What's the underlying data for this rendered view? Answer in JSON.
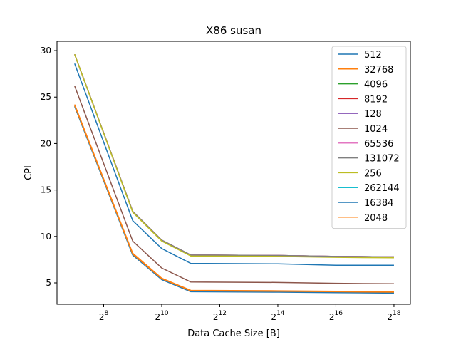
{
  "chart_data": {
    "type": "line",
    "title": "X86 susan",
    "xlabel": "Data Cache Size [B]",
    "ylabel": "CPI",
    "x_scale": "log2",
    "x": [
      128,
      512,
      1024,
      2048,
      16384,
      65536,
      262144
    ],
    "xlim": [
      84,
      388000
    ],
    "ylim": [
      2.7,
      31.0
    ],
    "xticks": [
      {
        "base": "2",
        "exp": "8",
        "value": 256
      },
      {
        "base": "2",
        "exp": "10",
        "value": 1024
      },
      {
        "base": "2",
        "exp": "12",
        "value": 4096
      },
      {
        "base": "2",
        "exp": "14",
        "value": 16384
      },
      {
        "base": "2",
        "exp": "16",
        "value": 65536
      },
      {
        "base": "2",
        "exp": "18",
        "value": 262144
      }
    ],
    "yticks": [
      5,
      10,
      15,
      20,
      25,
      30
    ],
    "grid": false,
    "legend_position": "top-right",
    "series": [
      {
        "name": "512",
        "color": "#1f77b4",
        "values": [
          28.6,
          11.7,
          8.7,
          7.1,
          7.05,
          6.9,
          6.9
        ]
      },
      {
        "name": "32768",
        "color": "#ff7f0e",
        "values": [
          24.2,
          8.2,
          5.5,
          4.2,
          4.15,
          4.1,
          4.05
        ]
      },
      {
        "name": "4096",
        "color": "#2ca02c",
        "values": [
          29.6,
          12.7,
          9.6,
          8.0,
          7.95,
          7.85,
          7.8
        ]
      },
      {
        "name": "8192",
        "color": "#d62728",
        "values": [
          29.6,
          12.7,
          9.6,
          8.0,
          7.95,
          7.85,
          7.8
        ]
      },
      {
        "name": "128",
        "color": "#9467bd",
        "values": [
          29.6,
          12.7,
          9.6,
          8.0,
          7.95,
          7.85,
          7.8
        ]
      },
      {
        "name": "1024",
        "color": "#8c564b",
        "values": [
          26.2,
          9.5,
          6.6,
          5.1,
          5.05,
          4.95,
          4.9
        ]
      },
      {
        "name": "65536",
        "color": "#e377c2",
        "values": [
          29.6,
          12.7,
          9.6,
          8.0,
          7.95,
          7.85,
          7.8
        ]
      },
      {
        "name": "131072",
        "color": "#7f7f7f",
        "values": [
          29.6,
          12.7,
          9.6,
          8.0,
          7.95,
          7.85,
          7.8
        ]
      },
      {
        "name": "256",
        "color": "#bcbd22",
        "values": [
          29.6,
          12.6,
          9.5,
          7.9,
          7.85,
          7.75,
          7.7
        ]
      },
      {
        "name": "262144",
        "color": "#17becf",
        "values": [
          24.0,
          8.0,
          5.4,
          4.1,
          4.05,
          4.0,
          3.95
        ]
      },
      {
        "name": "16384",
        "color": "#1f77b4",
        "values": [
          24.0,
          8.0,
          5.35,
          4.05,
          4.0,
          3.95,
          3.9
        ]
      },
      {
        "name": "2048",
        "color": "#ff7f0e",
        "values": [
          24.1,
          8.1,
          5.45,
          4.15,
          4.1,
          4.05,
          4.0
        ]
      }
    ]
  }
}
